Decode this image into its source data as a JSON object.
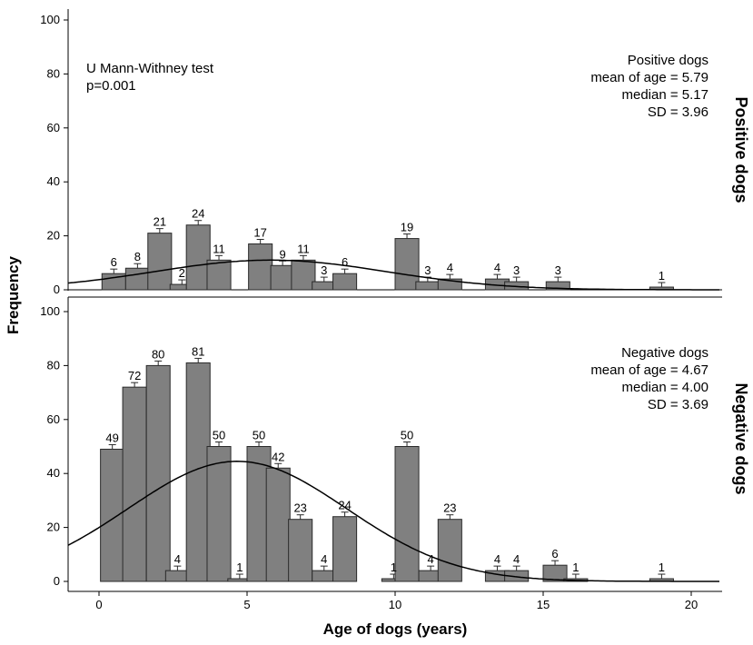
{
  "chart_data": {
    "type": "bar",
    "xlabel": "Age of dogs (years)",
    "ylabel": "Frequency",
    "xlim": [
      -1,
      21
    ],
    "x_ticks": [
      0,
      5,
      10,
      15,
      20
    ],
    "bin_width": 0.8,
    "colors": {
      "bar": "#808080",
      "bar_edge": "#2a2a2a",
      "curve": "#000000",
      "axis": "#000000"
    },
    "panels": [
      {
        "id": "positive",
        "side_title": "Positive dogs",
        "ylim": [
          0,
          100
        ],
        "y_ticks": [
          0,
          20,
          40,
          60,
          80,
          100
        ],
        "test_text": [
          "U Mann-Withney test",
          "p=0.001"
        ],
        "stats_text": [
          "Positive dogs",
          "mean of age = 5.79",
          "median = 5.17",
          "SD = 3.96"
        ],
        "bins": [
          {
            "start": 0.1,
            "value": 6
          },
          {
            "start": 0.9,
            "value": 8
          },
          {
            "start": 1.65,
            "value": 21
          },
          {
            "start": 2.4,
            "value": 2
          },
          {
            "start": 2.95,
            "value": 24
          },
          {
            "start": 3.65,
            "value": 11
          },
          {
            "start": 5.05,
            "value": 17
          },
          {
            "start": 5.8,
            "value": 9
          },
          {
            "start": 6.5,
            "value": 11
          },
          {
            "start": 7.2,
            "value": 3
          },
          {
            "start": 7.9,
            "value": 6
          },
          {
            "start": 10.0,
            "value": 19
          },
          {
            "start": 10.7,
            "value": 3
          },
          {
            "start": 11.45,
            "value": 4
          },
          {
            "start": 13.05,
            "value": 4
          },
          {
            "start": 13.7,
            "value": 3
          },
          {
            "start": 15.1,
            "value": 3
          },
          {
            "start": 18.6,
            "value": 1
          }
        ],
        "normal_curve": {
          "mean": 5.79,
          "sd": 3.96,
          "peak": 11
        }
      },
      {
        "id": "negative",
        "side_title": "Negative dogs",
        "ylim": [
          0,
          100
        ],
        "y_ticks": [
          0,
          20,
          40,
          60,
          80,
          100
        ],
        "stats_text": [
          "Negative dogs",
          "mean of age = 4.67",
          "median = 4.00",
          "SD = 3.69"
        ],
        "bins": [
          {
            "start": 0.05,
            "value": 49
          },
          {
            "start": 0.8,
            "value": 72
          },
          {
            "start": 1.6,
            "value": 80
          },
          {
            "start": 2.25,
            "value": 4
          },
          {
            "start": 2.95,
            "value": 81
          },
          {
            "start": 3.65,
            "value": 50
          },
          {
            "start": 4.35,
            "value": 1
          },
          {
            "start": 5.0,
            "value": 50
          },
          {
            "start": 5.65,
            "value": 42
          },
          {
            "start": 6.4,
            "value": 23
          },
          {
            "start": 7.2,
            "value": 4
          },
          {
            "start": 7.9,
            "value": 24
          },
          {
            "start": 9.55,
            "value": 1
          },
          {
            "start": 10.0,
            "value": 50
          },
          {
            "start": 10.8,
            "value": 4
          },
          {
            "start": 11.45,
            "value": 23
          },
          {
            "start": 13.05,
            "value": 4
          },
          {
            "start": 13.7,
            "value": 4
          },
          {
            "start": 15.0,
            "value": 6
          },
          {
            "start": 15.7,
            "value": 1
          },
          {
            "start": 18.6,
            "value": 1
          }
        ],
        "normal_curve": {
          "mean": 4.67,
          "sd": 3.69,
          "peak": 44.5
        }
      }
    ]
  }
}
